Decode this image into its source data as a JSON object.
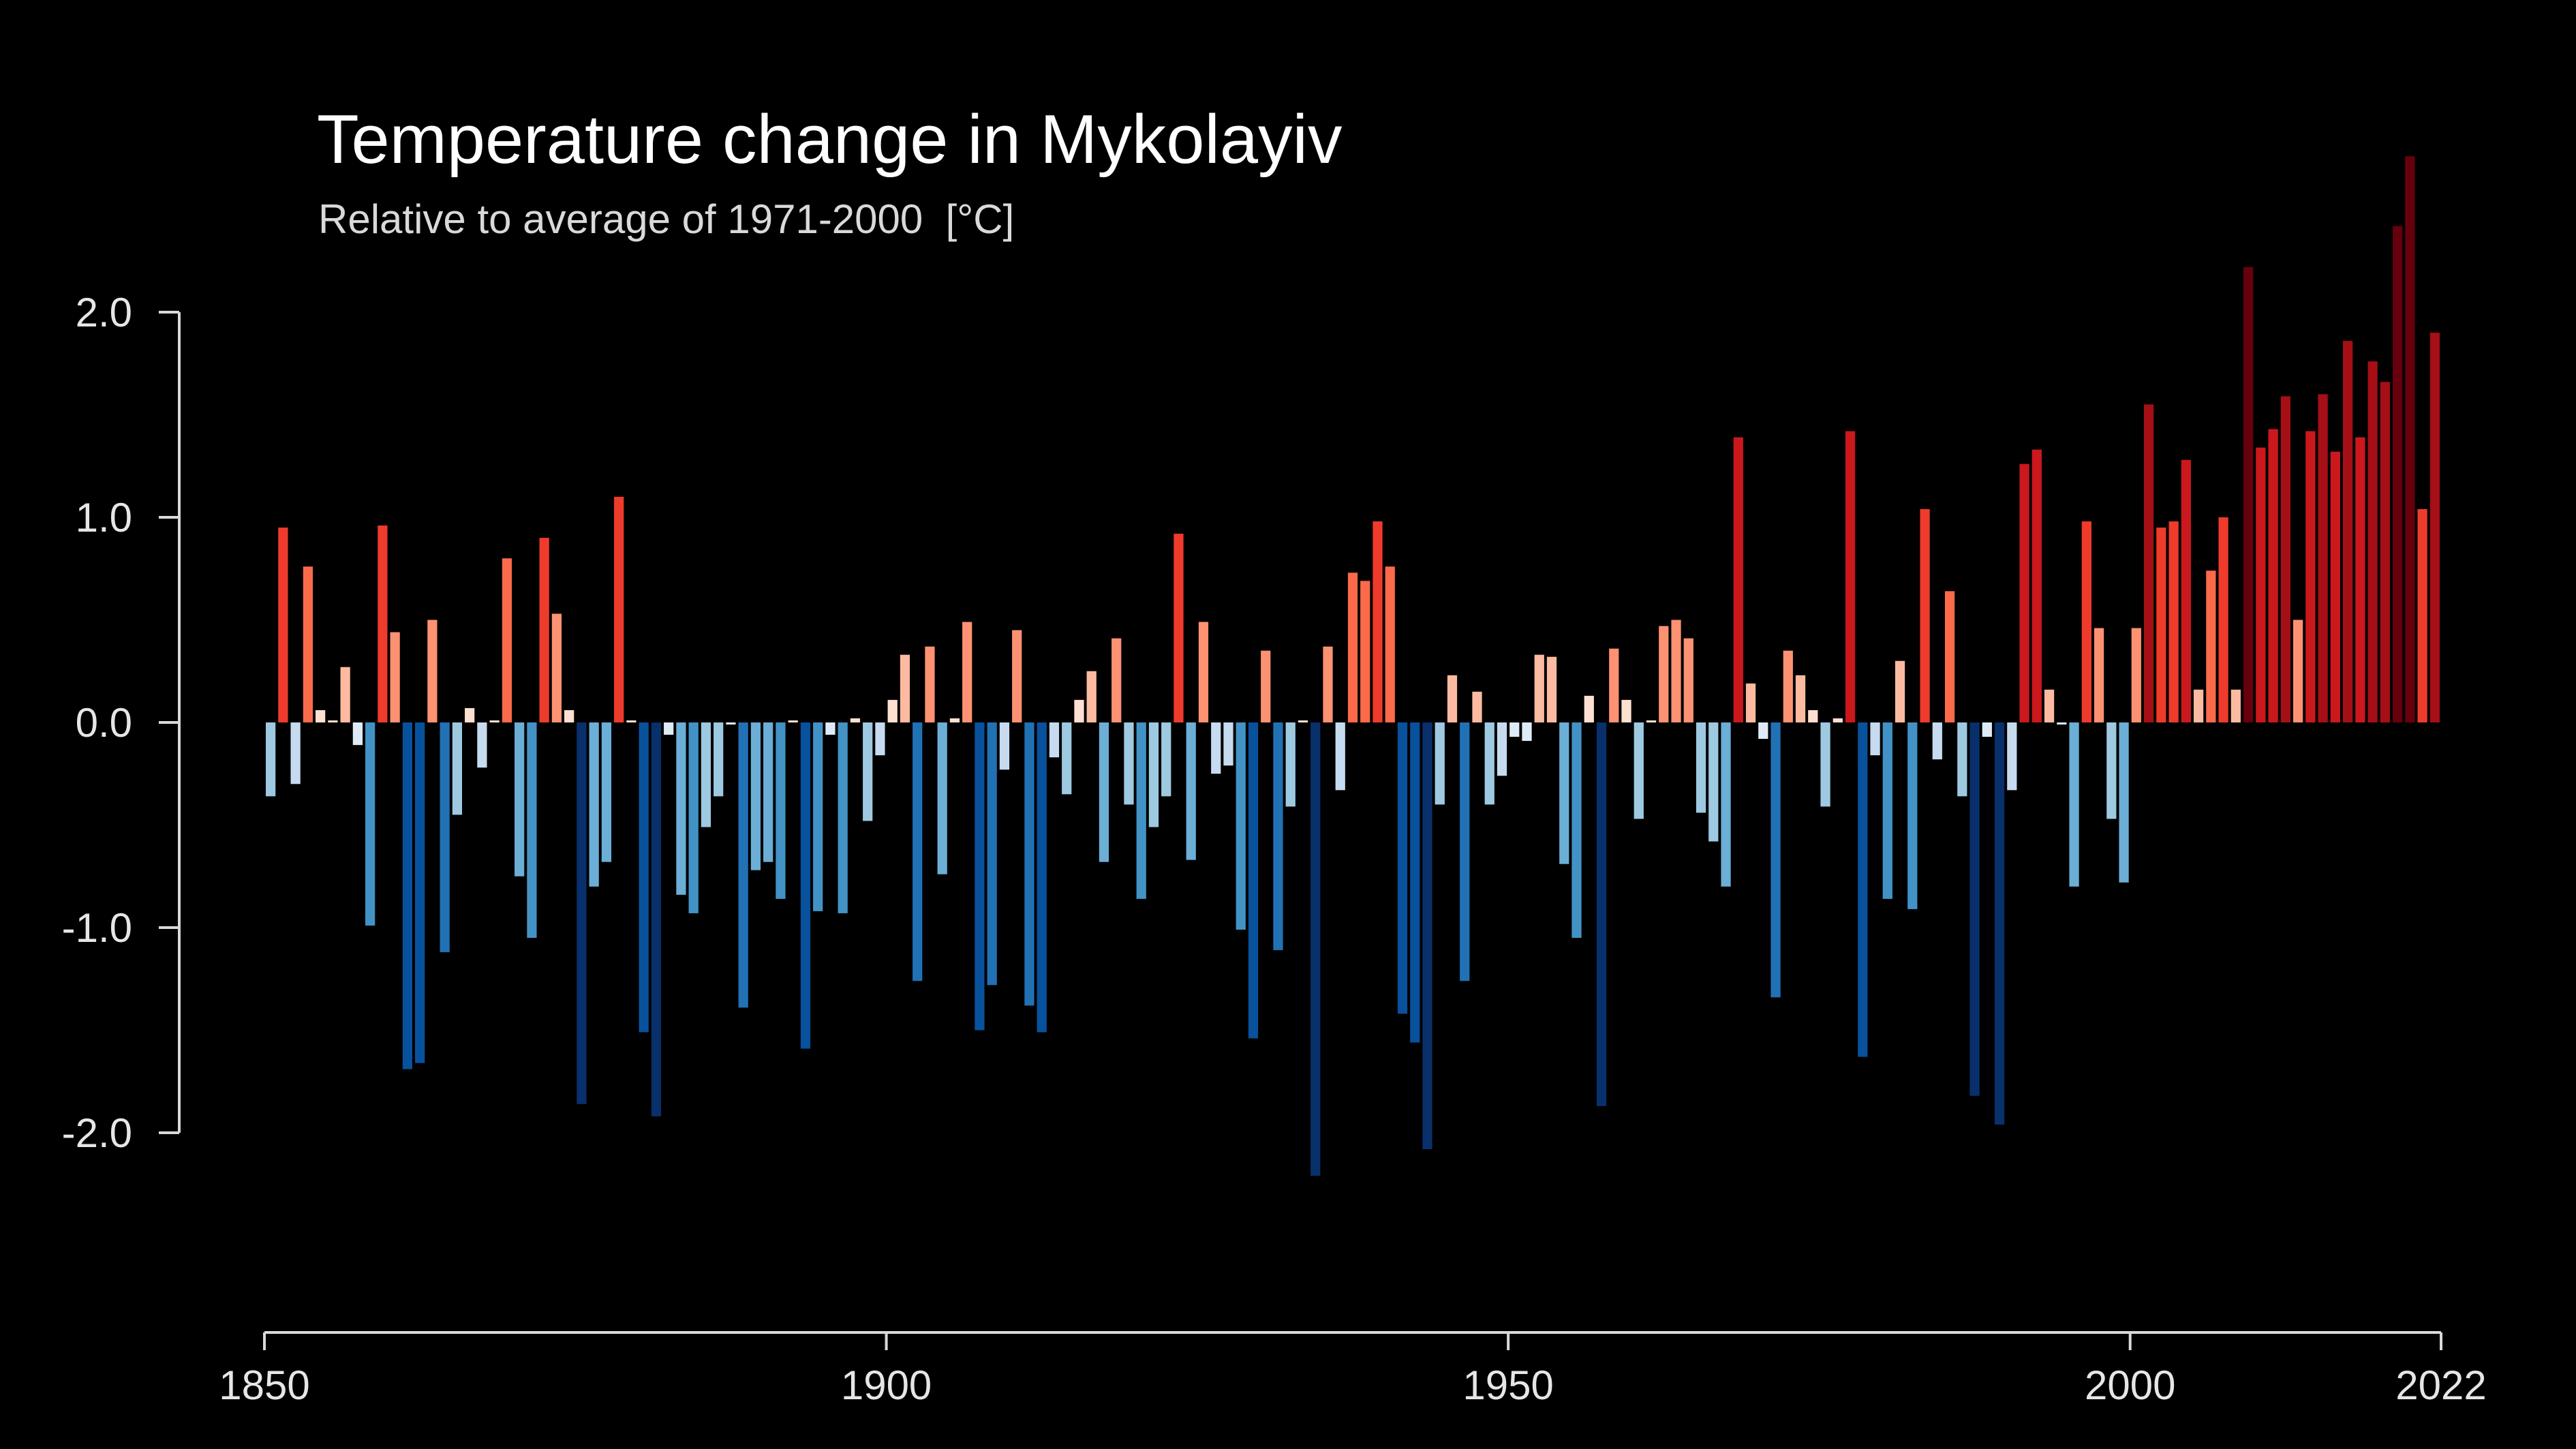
{
  "title": "Temperature change in Mykolayiv",
  "subtitle": "Relative to average of 1971-2000  [°C]",
  "chart_data": {
    "type": "bar",
    "title": "Temperature change in Mykolayiv",
    "subtitle": "Relative to average of 1971-2000  [°C]",
    "xlabel": "",
    "ylabel": "",
    "x_start": 1850,
    "x_end": 2022,
    "ylim": [
      -2.2,
      2.5
    ],
    "y_ticks": [
      {
        "value": 2.0,
        "label": "2.0"
      },
      {
        "value": 1.0,
        "label": "1.0"
      },
      {
        "value": 0.0,
        "label": "0.0"
      },
      {
        "value": -1.0,
        "label": "-1.0"
      },
      {
        "value": -2.0,
        "label": "-2.0"
      }
    ],
    "x_ticks": [
      {
        "value": 1850,
        "label": "1850"
      },
      {
        "value": 1900,
        "label": "1900"
      },
      {
        "value": 1950,
        "label": "1950"
      },
      {
        "value": 2000,
        "label": "2000"
      },
      {
        "value": 2022,
        "label": "2022"
      }
    ],
    "grid": false,
    "legend": "none",
    "colors": {
      "background": "#000000",
      "axis": "#d9d9d9",
      "text": "#e6e6e6"
    },
    "values": [
      -0.36,
      0.95,
      -0.3,
      0.76,
      0.06,
      0.01,
      0.27,
      -0.11,
      -0.99,
      0.96,
      0.44,
      -1.69,
      -1.66,
      0.5,
      -1.12,
      -0.45,
      0.07,
      -0.22,
      0.01,
      0.8,
      -0.75,
      -1.05,
      0.9,
      0.53,
      0.06,
      -1.86,
      -0.8,
      -0.68,
      1.1,
      0.01,
      -1.51,
      -1.92,
      -0.06,
      -0.84,
      -0.93,
      -0.51,
      -0.36,
      -0.01,
      -1.39,
      -0.72,
      -0.68,
      -0.86,
      0.01,
      -1.59,
      -0.92,
      -0.06,
      -0.93,
      0.02,
      -0.48,
      -0.16,
      0.11,
      0.33,
      -1.26,
      0.37,
      -0.74,
      0.02,
      0.49,
      -1.5,
      -1.28,
      -0.23,
      0.45,
      -1.38,
      -1.51,
      -0.17,
      -0.35,
      0.11,
      0.25,
      -0.68,
      0.41,
      -0.4,
      -0.86,
      -0.51,
      -0.36,
      0.92,
      -0.67,
      0.49,
      -0.25,
      -0.21,
      -1.01,
      -1.54,
      0.35,
      -1.11,
      -0.41,
      0.01,
      -2.21,
      0.37,
      -0.33,
      0.73,
      0.69,
      0.98,
      0.76,
      -1.42,
      -1.56,
      -2.08,
      -0.4,
      0.23,
      -1.26,
      0.15,
      -0.4,
      -0.26,
      -0.07,
      -0.09,
      0.33,
      0.32,
      -0.69,
      -1.05,
      0.13,
      -1.87,
      0.36,
      0.11,
      -0.47,
      0.01,
      0.47,
      0.5,
      0.41,
      -0.44,
      -0.58,
      -0.8,
      1.39,
      0.19,
      -0.08,
      -1.34,
      0.35,
      0.23,
      0.06,
      -0.41,
      0.02,
      1.42,
      -1.63,
      -0.16,
      -0.86,
      0.3,
      -0.91,
      1.04,
      -0.18,
      0.64,
      -0.36,
      -1.82,
      -0.07,
      -1.96,
      -0.33,
      1.26,
      1.33,
      0.16,
      -0.01,
      -0.8,
      0.98,
      0.46,
      -0.47,
      -0.78,
      0.46,
      1.55,
      0.95,
      0.98,
      1.28,
      0.16,
      0.74,
      1.0,
      0.16,
      2.22,
      1.34,
      1.43,
      1.59,
      0.5,
      1.42,
      1.6,
      1.32,
      1.86,
      1.39,
      1.76,
      1.66,
      2.42,
      2.76,
      1.04,
      1.9
    ]
  }
}
